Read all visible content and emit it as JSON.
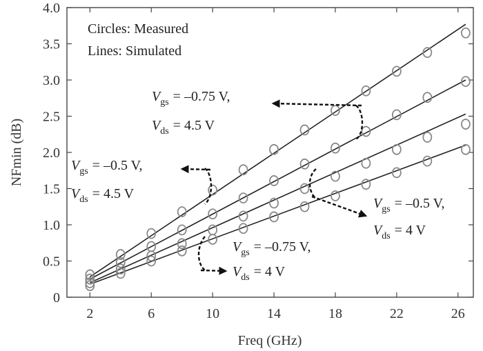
{
  "chart_data": {
    "type": "scatter",
    "xlabel": "Freq (GHz)",
    "ylabel": "NFmin (dB)",
    "xlim": [
      0.5,
      27
    ],
    "ylim": [
      0,
      4.0
    ],
    "xticks": [
      "2",
      "6",
      "10",
      "14",
      "18",
      "22",
      "26"
    ],
    "yticks": [
      "0",
      "0.5",
      "1.0",
      "1.5",
      "2.0",
      "2.5",
      "3.0",
      "3.5",
      "4.0"
    ],
    "grid": false,
    "notes": [
      "Circles: Measured",
      "Lines: Simulated"
    ],
    "series": [
      {
        "bias": {
          "vgs": "= –0.75 V,",
          "vds": "= 4.5 V"
        },
        "line": [
          [
            2,
            0.28
          ],
          [
            26.5,
            3.77
          ]
        ],
        "x": [
          2,
          4,
          6,
          8,
          10,
          12,
          14,
          16,
          18,
          20,
          22,
          24,
          26.5
        ],
        "y": [
          0.31,
          0.59,
          0.88,
          1.18,
          1.48,
          1.76,
          2.04,
          2.31,
          2.58,
          2.85,
          3.12,
          3.38,
          3.65
        ]
      },
      {
        "bias": {
          "vgs": "= –0.5 V,",
          "vds": "= 4.5 V"
        },
        "line": [
          [
            2,
            0.25
          ],
          [
            26.5,
            3.0
          ]
        ],
        "x": [
          2,
          4,
          6,
          8,
          10,
          12,
          14,
          16,
          18,
          20,
          22,
          24,
          26.5
        ],
        "y": [
          0.25,
          0.48,
          0.7,
          0.93,
          1.15,
          1.37,
          1.61,
          1.84,
          2.06,
          2.29,
          2.52,
          2.76,
          2.98
        ]
      },
      {
        "bias": {
          "vgs": "= –0.5 V,",
          "vds": "= 4 V"
        },
        "line": [
          [
            2,
            0.2
          ],
          [
            26.5,
            2.53
          ]
        ],
        "x": [
          2,
          4,
          6,
          8,
          10,
          12,
          14,
          16,
          18,
          20,
          22,
          24,
          26.5
        ],
        "y": [
          0.2,
          0.39,
          0.57,
          0.74,
          0.93,
          1.12,
          1.3,
          1.5,
          1.67,
          1.85,
          2.04,
          2.21,
          2.39
        ]
      },
      {
        "bias": {
          "vgs": "= –0.75 V,",
          "vds": "= 4 V"
        },
        "line": [
          [
            2,
            0.18
          ],
          [
            26.5,
            2.1
          ]
        ],
        "x": [
          2,
          4,
          6,
          8,
          10,
          12,
          14,
          16,
          18,
          20,
          22,
          24,
          26.5
        ],
        "y": [
          0.16,
          0.33,
          0.5,
          0.64,
          0.8,
          0.95,
          1.11,
          1.25,
          1.4,
          1.56,
          1.72,
          1.88,
          2.04
        ]
      }
    ],
    "annotations": [
      {
        "series": 0,
        "vgs_label": "V",
        "vgs_sub": "gs",
        "vds_label": "V",
        "vds_sub": "ds"
      },
      {
        "series": 1,
        "vgs_label": "V",
        "vgs_sub": "gs",
        "vds_label": "V",
        "vds_sub": "ds"
      },
      {
        "series": 2,
        "vgs_label": "V",
        "vgs_sub": "gs",
        "vds_label": "V",
        "vds_sub": "ds"
      },
      {
        "series": 3,
        "vgs_label": "V",
        "vgs_sub": "gs",
        "vds_label": "V",
        "vds_sub": "ds"
      }
    ]
  }
}
